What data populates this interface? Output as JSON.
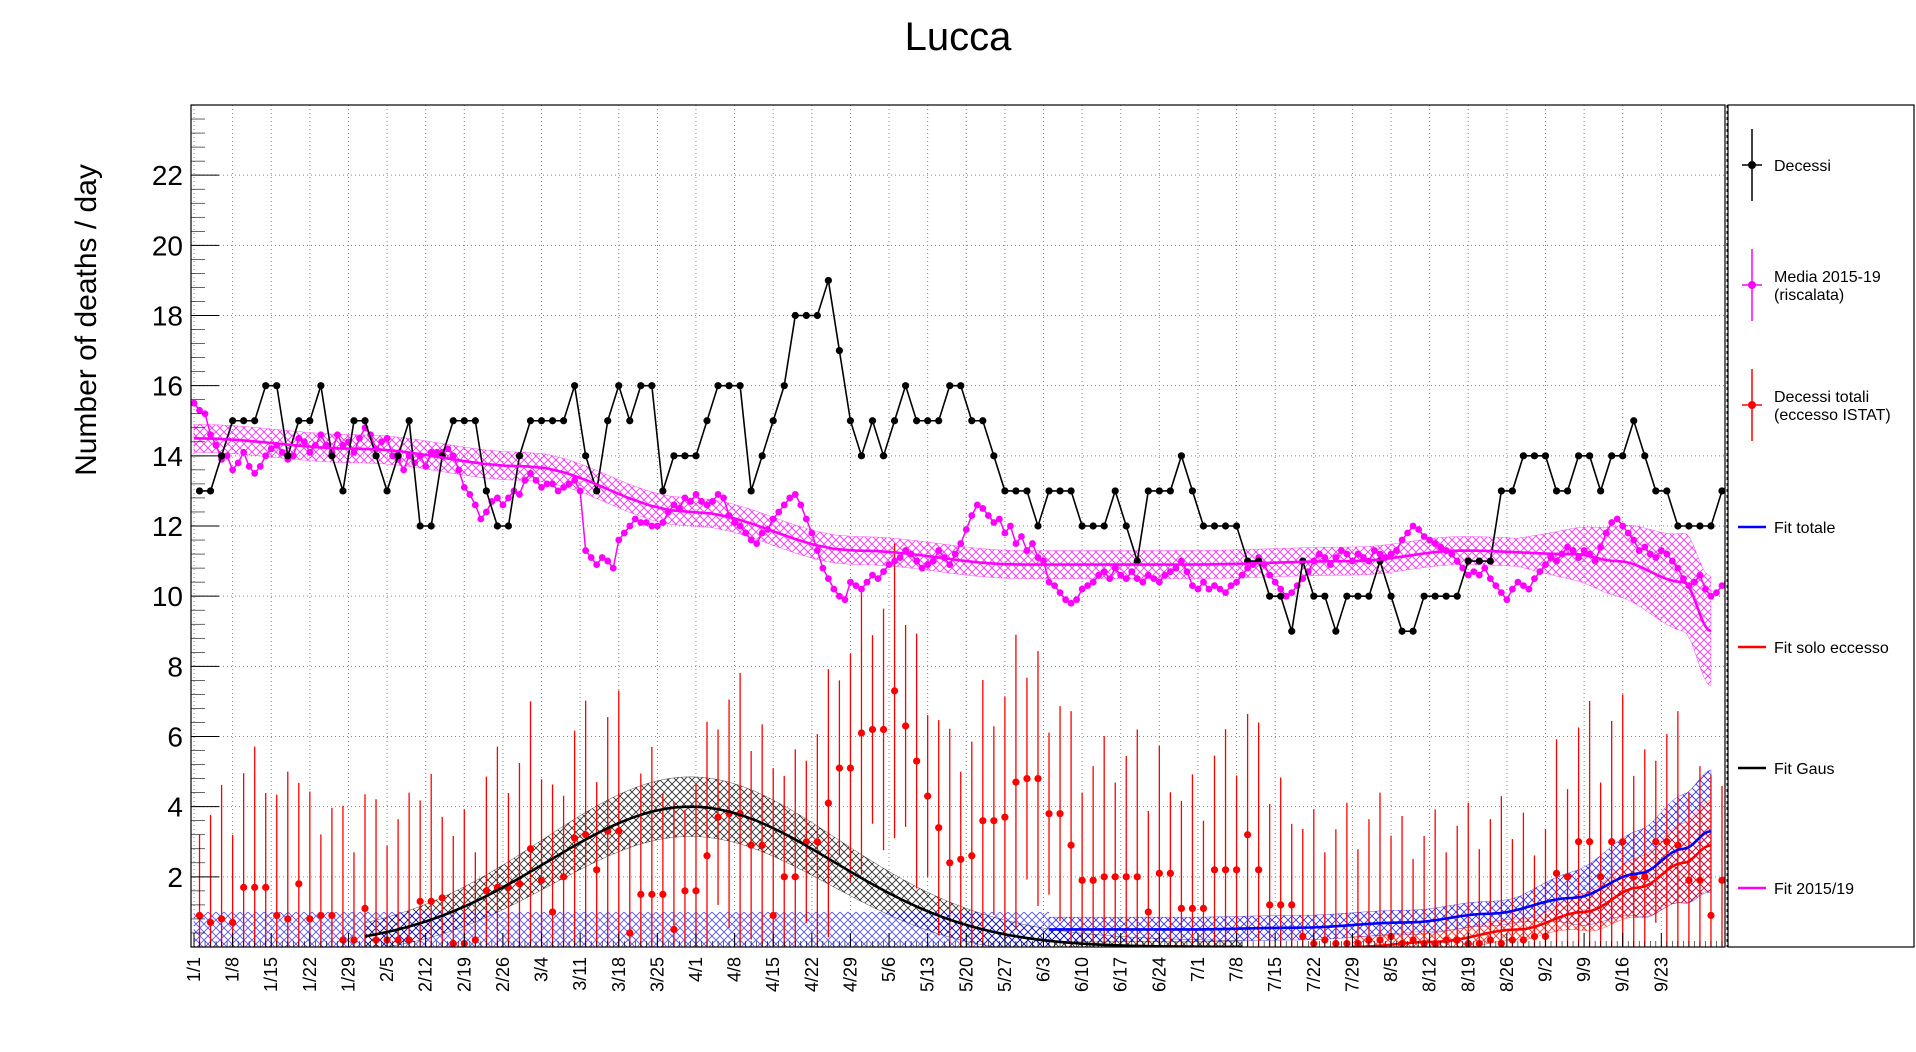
{
  "chart_data": {
    "type": "line",
    "title": "Lucca",
    "ylabel": "Number of deaths / day",
    "xlabel": "",
    "ylim": [
      0,
      24
    ],
    "grid": true,
    "legend_placement": "right",
    "x_ticks": [
      "1/1",
      "1/8",
      "1/15",
      "1/22",
      "1/29",
      "2/5",
      "2/12",
      "2/19",
      "2/26",
      "3/4",
      "3/11",
      "3/18",
      "3/25",
      "4/1",
      "4/8",
      "4/15",
      "4/22",
      "4/29",
      "5/6",
      "5/13",
      "5/20",
      "5/27",
      "6/3",
      "6/10",
      "6/17",
      "6/24",
      "7/1",
      "7/8",
      "7/15",
      "7/22",
      "7/29",
      "8/5",
      "8/12",
      "8/19",
      "8/26",
      "9/2",
      "9/9",
      "9/16",
      "9/23"
    ],
    "y_ticks": [
      "2",
      "4",
      "6",
      "8",
      "10",
      "12",
      "14",
      "16",
      "18",
      "20",
      "22"
    ],
    "legend": [
      {
        "label": "Decessi",
        "color": "#000000"
      },
      {
        "label": "Media 2015-19\n(riscalata)",
        "color": "#ff00ff"
      },
      {
        "label": "Decessi totali\n(eccesso ISTAT)",
        "color": "#ff0000"
      },
      {
        "label": "Fit totale",
        "color": "#0000ff"
      },
      {
        "label": "Fit solo eccesso",
        "color": "#ff0000"
      },
      {
        "label": "Fit Gaus",
        "color": "#000000"
      },
      {
        "label": "Fit 2015/19",
        "color": "#ff00ff"
      }
    ],
    "series": [
      {
        "name": "Decessi",
        "color": "#000000",
        "x_day_step": 2,
        "values": [
          13,
          13,
          14,
          15,
          15,
          15,
          16,
          16,
          14,
          15,
          15,
          16,
          14,
          13,
          15,
          15,
          14,
          13,
          14,
          15,
          12,
          12,
          14,
          15,
          15,
          15,
          13,
          12,
          12,
          14,
          15,
          15,
          15,
          15,
          16,
          14,
          13,
          15,
          16,
          15,
          16,
          16,
          13,
          14,
          14,
          14,
          15,
          16,
          16,
          16,
          13,
          14,
          15,
          16,
          18,
          18,
          18,
          19,
          17,
          15,
          14,
          15,
          14,
          15,
          16,
          15,
          15,
          15,
          16,
          16,
          15,
          15,
          14,
          13,
          13,
          13,
          12,
          13,
          13,
          13,
          12,
          12,
          12,
          13,
          12,
          11,
          13,
          13,
          13,
          14,
          13,
          12,
          12,
          12,
          12,
          11,
          11,
          10,
          10,
          9,
          11,
          10,
          10,
          9,
          10,
          10,
          10,
          11,
          10,
          9,
          9,
          10,
          10,
          10,
          10,
          11,
          11,
          11,
          13,
          13,
          14,
          14,
          14,
          13,
          13,
          14,
          14,
          13,
          14,
          14,
          15,
          14,
          13,
          13,
          12,
          12,
          12,
          12,
          13,
          13,
          12,
          12,
          12,
          13,
          12,
          11,
          12,
          12,
          12,
          14,
          13,
          13,
          12,
          11,
          12,
          12,
          13,
          13,
          14,
          14,
          14,
          14,
          13,
          12,
          10,
          11,
          11,
          11,
          11,
          10,
          10,
          11,
          11,
          12,
          12,
          12,
          12,
          11,
          11,
          11,
          10,
          10,
          11,
          11,
          13,
          14,
          14,
          13,
          13,
          12,
          11,
          11,
          12,
          12,
          13,
          13,
          12,
          11,
          12,
          12,
          11,
          12,
          12,
          12,
          11,
          12,
          12,
          11,
          12,
          12,
          11,
          11,
          10,
          10,
          12
        ]
      },
      {
        "name": "Media 2015-19\n(riscalata)",
        "color": "#ff00ff",
        "values": [
          15.5,
          15.3,
          15.2,
          14.6,
          14.3,
          13.9,
          14.0,
          13.6,
          13.8,
          14.1,
          13.7,
          13.5,
          13.7,
          14.0,
          14.2,
          14.3,
          14.1,
          13.9,
          14.0,
          14.5,
          14.4,
          14.1,
          14.3,
          14.6,
          14.3,
          14.1,
          14.6,
          14.3,
          14.4,
          14.1,
          14.5,
          14.8,
          14.6,
          14.2,
          14.4,
          14.5,
          14.0,
          13.9,
          13.6,
          14.0,
          13.8,
          14.0,
          13.7,
          14.1,
          14.1,
          14.1,
          14.2,
          14.0,
          13.6,
          13.1,
          12.9,
          12.6,
          12.2,
          12.4,
          12.7,
          12.8,
          12.6,
          12.8,
          13.0,
          12.9,
          13.3,
          13.5,
          13.3,
          13.1,
          13.2,
          13.2,
          13.0,
          13.1,
          13.2,
          13.3,
          13.0,
          11.3,
          11.1,
          10.9,
          11.1,
          11.0,
          10.8,
          11.6,
          11.8,
          12.0,
          12.2,
          12.1,
          12.1,
          12.0,
          12.0,
          12.1,
          12.4,
          12.6,
          12.5,
          12.8,
          12.7,
          12.9,
          12.7,
          12.6,
          12.7,
          12.9,
          12.8,
          12.3,
          12.1,
          12.0,
          11.8,
          11.6,
          11.5,
          11.8,
          11.9,
          12.2,
          12.4,
          12.6,
          12.8,
          12.9,
          12.6,
          12.2,
          11.8,
          11.3,
          10.8,
          10.5,
          10.2,
          10.0,
          9.9,
          10.4,
          10.3,
          10.2,
          10.4,
          10.6,
          10.5,
          10.7,
          10.9,
          11.0,
          11.1,
          11.3,
          11.2,
          11.0,
          10.8,
          10.9,
          11.0,
          11.3,
          11.1,
          10.9,
          11.2,
          11.5,
          11.9,
          12.3,
          12.6,
          12.5,
          12.3,
          12.1,
          12.2,
          11.8,
          12.0,
          11.5,
          11.7,
          11.3,
          11.5,
          11.1,
          11.0,
          10.4,
          10.3,
          10.1,
          9.9,
          9.8,
          9.9,
          10.2,
          10.3,
          10.4,
          10.6,
          10.7,
          10.5,
          10.8,
          10.6,
          10.5,
          10.7,
          10.5,
          10.4,
          10.6,
          10.5,
          10.4,
          10.6,
          10.7,
          10.8,
          11.0,
          10.7,
          10.3,
          10.2,
          10.4,
          10.2,
          10.3,
          10.2,
          10.1,
          10.3,
          10.4,
          10.6,
          10.8,
          10.9,
          11.1,
          10.9,
          10.6,
          10.4,
          10.2,
          10.0,
          10.1,
          10.3,
          10.5,
          10.7,
          11.0,
          11.2,
          11.1,
          10.9,
          11.1,
          11.3,
          11.2,
          11.0,
          11.2,
          11.1,
          11.0,
          11.3,
          11.2,
          11.1,
          11.2,
          11.3,
          11.6,
          11.8,
          12.0,
          11.9,
          11.7,
          11.6,
          11.5,
          11.4,
          11.3,
          11.2,
          11.0,
          10.8,
          10.6,
          10.7,
          10.6,
          10.8,
          10.5,
          10.3,
          10.1,
          9.9,
          10.2,
          10.4,
          10.3,
          10.2,
          10.5,
          10.7,
          10.9,
          11.1,
          11.0,
          11.2,
          11.4,
          11.3,
          11.1,
          11.3,
          11.2,
          11.0,
          11.4,
          11.8,
          12.1,
          12.2,
          12.0,
          11.8,
          11.6,
          11.3,
          11.4,
          11.2,
          11.1,
          11.3,
          11.2,
          11.0,
          10.8,
          10.5,
          10.3,
          10.4,
          10.6,
          10.2,
          10.0,
          10.1,
          10.3,
          10.4,
          10.5,
          10.7,
          10.9,
          11.0,
          10.9,
          10.7,
          10.4,
          10.2,
          10.0,
          9.7,
          9.4,
          9.3,
          9.4,
          9.5,
          9.7,
          9.9,
          10.1,
          10.3,
          10.5,
          10.6,
          10.4,
          10.2,
          10.1,
          10.3,
          10.6,
          10.9,
          10.8,
          10.6
        ]
      },
      {
        "name": "Decessi totali\n(eccesso ISTAT)",
        "color": "#ff0000",
        "x_day_step": 2,
        "values": [
          0.9,
          0.7,
          0.8,
          0.7,
          1.7,
          1.7,
          1.7,
          0.9,
          0.8,
          1.8,
          0.8,
          0.9,
          0.9,
          0.2,
          0.2,
          1.1,
          0.2,
          0.2,
          0.2,
          0.2,
          1.3,
          1.3,
          1.4,
          0.1,
          0.1,
          0.2,
          1.6,
          1.7,
          1.7,
          1.8,
          2.8,
          1.9,
          1.0,
          2.0,
          3.1,
          3.2,
          2.2,
          3.3,
          3.3,
          0.4,
          1.5,
          1.5,
          1.5,
          0.5,
          1.6,
          1.6,
          2.6,
          3.7,
          3.8,
          3.8,
          2.9,
          2.9,
          0.9,
          2.0,
          2.0,
          3.0,
          3.0,
          4.1,
          5.1,
          5.1,
          6.1,
          6.2,
          6.2,
          7.3,
          6.3,
          5.3,
          4.3,
          3.4,
          2.4,
          2.5,
          2.6,
          3.6,
          3.6,
          3.7,
          4.7,
          4.8,
          4.8,
          3.8,
          3.8,
          2.9,
          1.9,
          1.9,
          2.0,
          2.0,
          2.0,
          2.0,
          1.0,
          2.1,
          2.1,
          1.1,
          1.1,
          1.1,
          2.2,
          2.2,
          2.2,
          3.2,
          2.2,
          1.2,
          1.2,
          1.2,
          0.3,
          0.1,
          0.2,
          0.1,
          0.1,
          0.1,
          0.2,
          0.2,
          0.3,
          0.1,
          0.2,
          0.1,
          0.1,
          0.2,
          0.2,
          0.1,
          0.1,
          0.2,
          0.1,
          0.2,
          0.2,
          0.3,
          0.3,
          2.1,
          2.0,
          3.0,
          3.0,
          2.0,
          3.0,
          3.0,
          2.0,
          2.0,
          3.0,
          3.0,
          2.9,
          1.9,
          1.9,
          0.9,
          1.9,
          1.9,
          0.9,
          0.9,
          1.8,
          1.8,
          0.8,
          0.8,
          0.8,
          0.8,
          2.8,
          1.8,
          1.8,
          1.8,
          1.8,
          1.8,
          0.8,
          0.8,
          1.8,
          1.8,
          2.8,
          3.8,
          2.8,
          1.8,
          0.8,
          0.8,
          0.7,
          0.7,
          0.7,
          0.7,
          0.7,
          0.7,
          0.7,
          1.0,
          0.6,
          0.6,
          0.7,
          0.7,
          1.2,
          1.3,
          1.2,
          1.2,
          0.2,
          0.2,
          0.5,
          0.5,
          1.5,
          2.6,
          2.6,
          2.6,
          4.7,
          3.7,
          2.8,
          3.8,
          3.0,
          1.0,
          1.1,
          1.2,
          1.3,
          1.4,
          1.6,
          1.7,
          3.7,
          3.7,
          2.0,
          2.8,
          3.2,
          3.5
        ],
        "error": 4.2
      }
    ],
    "fits": [
      {
        "name": "Fit Gaus",
        "color": "#000000",
        "type": "gaussian",
        "amplitude": 4.0,
        "mean_day": 90,
        "sigma_day": 26,
        "x_range_day": [
          31,
          190
        ]
      },
      {
        "name": "Fit 2015/19",
        "color": "#ff00ff",
        "type": "curve",
        "points": [
          [
            0,
            14.5
          ],
          [
            30,
            14.2
          ],
          [
            60,
            13.7
          ],
          [
            90,
            12.4
          ],
          [
            120,
            11.3
          ],
          [
            150,
            10.9
          ],
          [
            180,
            10.9
          ],
          [
            210,
            11.0
          ],
          [
            230,
            11.3
          ],
          [
            250,
            11.2
          ],
          [
            258,
            11.0
          ],
          [
            270,
            10.4
          ],
          [
            275,
            9.0
          ]
        ]
      },
      {
        "name": "Fit totale",
        "color": "#0000ff",
        "type": "curve",
        "points": [
          [
            155,
            0.5
          ],
          [
            180,
            0.5
          ],
          [
            200,
            0.55
          ],
          [
            220,
            0.7
          ],
          [
            235,
            0.95
          ],
          [
            250,
            1.4
          ],
          [
            262,
            2.1
          ],
          [
            270,
            2.8
          ],
          [
            275,
            3.3
          ]
        ]
      },
      {
        "name": "Fit solo eccesso",
        "color": "#ff0000",
        "type": "curve",
        "points": [
          [
            210,
            0.0
          ],
          [
            225,
            0.15
          ],
          [
            240,
            0.5
          ],
          [
            252,
            1.0
          ],
          [
            262,
            1.7
          ],
          [
            270,
            2.4
          ],
          [
            275,
            2.9
          ]
        ]
      }
    ],
    "x_tick_day_offsets": [
      0,
      7,
      14,
      21,
      28,
      35,
      42,
      49,
      56,
      63,
      70,
      77,
      84,
      91,
      98,
      105,
      112,
      119,
      126,
      133,
      140,
      147,
      154,
      161,
      168,
      175,
      182,
      189,
      196,
      203,
      210,
      217,
      224,
      231,
      238,
      245,
      252,
      259,
      266
    ]
  }
}
